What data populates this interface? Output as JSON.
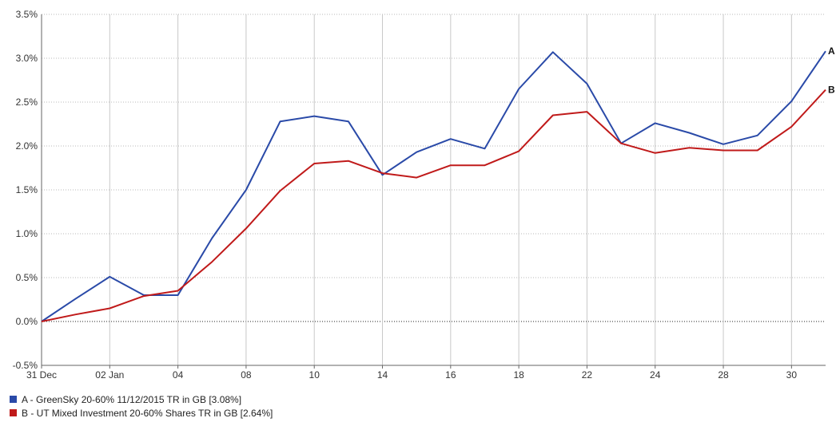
{
  "chart_data": {
    "type": "line",
    "title": "",
    "xlabel": "",
    "ylabel": "",
    "ylim": [
      -0.5,
      3.5
    ],
    "y_ticks": [
      "3.5%",
      "3.0%",
      "2.5%",
      "2.0%",
      "1.5%",
      "1.0%",
      "0.5%",
      "0.0%",
      "-0.5%"
    ],
    "y_tick_values": [
      3.5,
      3.0,
      2.5,
      2.0,
      1.5,
      1.0,
      0.5,
      0.0,
      -0.5
    ],
    "x_range": [
      0,
      23
    ],
    "x_ticks": [
      {
        "label": "31 Dec",
        "x": 0
      },
      {
        "label": "02 Jan",
        "x": 2
      },
      {
        "label": "04",
        "x": 4
      },
      {
        "label": "08",
        "x": 6
      },
      {
        "label": "10",
        "x": 8
      },
      {
        "label": "14",
        "x": 10
      },
      {
        "label": "16",
        "x": 12
      },
      {
        "label": "18",
        "x": 14
      },
      {
        "label": "22",
        "x": 16
      },
      {
        "label": "24",
        "x": 18
      },
      {
        "label": "28",
        "x": 20
      },
      {
        "label": "30",
        "x": 22
      }
    ],
    "grid": true,
    "legend_position": "bottom-left",
    "series": [
      {
        "name": "A - GreenSky 20-60% 11/12/2015 TR in GB [3.08%]",
        "end_label": "A",
        "color": "#2a4aa8",
        "x": [
          0,
          1,
          2,
          3,
          4,
          5,
          6,
          7,
          8,
          9,
          10,
          11,
          12,
          13,
          14,
          15,
          16,
          17,
          18,
          19,
          20,
          21,
          22,
          23
        ],
        "values": [
          0.0,
          0.26,
          0.51,
          0.3,
          0.3,
          0.95,
          1.5,
          2.28,
          2.34,
          2.28,
          1.67,
          1.93,
          2.08,
          1.97,
          2.65,
          3.07,
          2.71,
          2.03,
          2.26,
          2.15,
          2.02,
          2.12,
          2.51,
          3.08
        ]
      },
      {
        "name": "B - UT Mixed Investment 20-60% Shares TR in GB [2.64%]",
        "end_label": "B",
        "color": "#c01a1a",
        "x": [
          0,
          1,
          2,
          3,
          4,
          5,
          6,
          7,
          8,
          9,
          10,
          11,
          12,
          13,
          14,
          15,
          16,
          17,
          18,
          19,
          20,
          21,
          22,
          23
        ],
        "values": [
          0.0,
          0.08,
          0.15,
          0.29,
          0.35,
          0.68,
          1.06,
          1.49,
          1.8,
          1.83,
          1.69,
          1.64,
          1.78,
          1.78,
          1.94,
          2.35,
          2.39,
          2.03,
          1.92,
          1.98,
          1.95,
          1.95,
          2.22,
          2.64
        ]
      }
    ]
  }
}
